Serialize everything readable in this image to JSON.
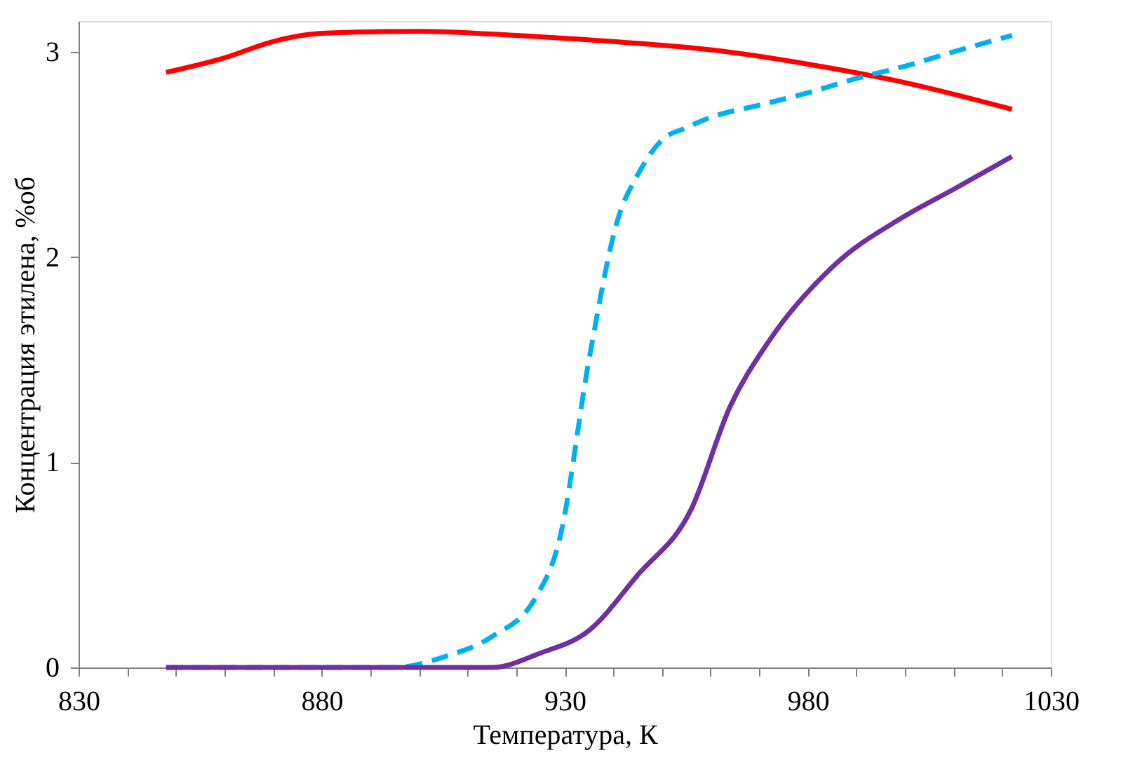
{
  "chart_data": {
    "type": "line",
    "xlabel": "Температура, К",
    "ylabel": "Концентрация этилена, %об",
    "xlim": [
      830,
      1030
    ],
    "ylim": [
      0,
      3.15
    ],
    "yticks": [
      0,
      1,
      2,
      3
    ],
    "xticks": [
      830,
      {
        "value": 840,
        "label": null
      },
      {
        "value": 850,
        "label": null
      },
      {
        "value": 860,
        "label": null
      },
      {
        "value": 870,
        "label": null
      },
      880,
      {
        "value": 890,
        "label": null
      },
      {
        "value": 900,
        "label": null
      },
      {
        "value": 910,
        "label": null
      },
      {
        "value": 920,
        "label": null
      },
      930,
      {
        "value": 940,
        "label": null
      },
      {
        "value": 950,
        "label": null
      },
      {
        "value": 960,
        "label": null
      },
      {
        "value": 970,
        "label": null
      },
      980,
      {
        "value": 990,
        "label": null
      },
      {
        "value": 1000,
        "label": null
      },
      {
        "value": 1010,
        "label": null
      },
      {
        "value": 1020,
        "label": null
      },
      1030
    ],
    "grid": false,
    "marker": "none",
    "series": [
      {
        "color": "#ff0000",
        "line_style": "solid",
        "x": [
          848,
          860,
          870,
          880,
          900,
          920,
          940,
          960,
          980,
          1000,
          1022
        ],
        "values": [
          2.9,
          2.97,
          3.05,
          3.09,
          3.1,
          3.08,
          3.05,
          3.01,
          2.94,
          2.85,
          2.72
        ]
      },
      {
        "color": "#00b0f0",
        "line_style": "dashed",
        "x": [
          848,
          895,
          905,
          915,
          924,
          929,
          935,
          941,
          945,
          950,
          955,
          960,
          970,
          980,
          990,
          1000,
          1010,
          1022
        ],
        "values": [
          0,
          0,
          0.05,
          0.15,
          0.34,
          0.63,
          1.5,
          2.19,
          2.4,
          2.57,
          2.63,
          2.68,
          2.74,
          2.8,
          2.87,
          2.93,
          3.0,
          3.08
        ]
      },
      {
        "color": "#7030a0",
        "line_style": "solid",
        "x": [
          848,
          915,
          925,
          935,
          945,
          956,
          964,
          972,
          985,
          1000,
          1010,
          1022
        ],
        "values": [
          0,
          0,
          0.07,
          0.18,
          0.45,
          0.77,
          1.27,
          1.59,
          1.95,
          2.2,
          2.33,
          2.49
        ]
      }
    ]
  }
}
